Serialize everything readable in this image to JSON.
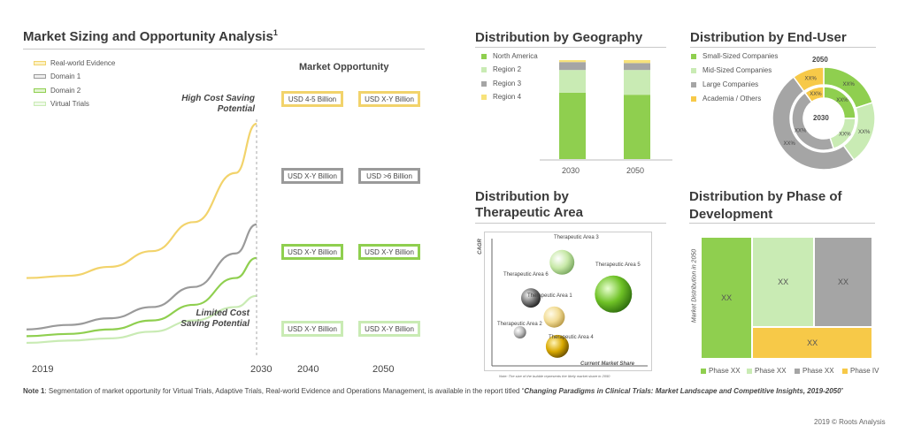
{
  "colors": {
    "yellow": "#f2d36b",
    "light_yellow": "#f5e9b0",
    "grey": "#9a9a9a",
    "green": "#8fcf4f",
    "light_green": "#c9ebb4",
    "dark_grey": "#a5a5a5",
    "gold": "#f7c948"
  },
  "market": {
    "title": "Market Sizing and Opportunity Analysis",
    "title_sup": "1",
    "legend": [
      "Real-world Evidence",
      "Domain  1",
      "Domain  2",
      "Virtual Trials"
    ],
    "opportunity_heading": "Market Opportunity",
    "high_label_1": "High Cost Saving",
    "high_label_2": "Potential",
    "low_label_1": "Limited Cost",
    "low_label_2": "Saving Potential",
    "years": [
      "2019",
      "2030",
      "2040",
      "2050"
    ],
    "boxes": [
      {
        "b2040": "USD 4-5 Billion",
        "b2050": "USD X-Y Billion"
      },
      {
        "b2040": "USD X-Y Billion",
        "b2050": "USD >6 Billion"
      },
      {
        "b2040": "USD X-Y Billion",
        "b2050": "USD X-Y Billion"
      },
      {
        "b2040": "USD X-Y Billion",
        "b2050": "USD X-Y Billion"
      }
    ]
  },
  "geo": {
    "title": "Distribution  by Geography",
    "legend": [
      "North America",
      "Region 2",
      "Region 3",
      "Region 4"
    ]
  },
  "enduser": {
    "title": "Distribution  by End-User",
    "legend": [
      "Small-Sized  Companies",
      "Mid-Sized Companies",
      "Large Companies",
      "Academia / Others"
    ],
    "outer_year": "2050",
    "inner_year": "2030",
    "slice_label": "XX%"
  },
  "therapeutic": {
    "title_1": "Distribution  by",
    "title_2": "Therapeutic Area",
    "y_axis": "CAGR",
    "x_axis": "Current  Market Share",
    "note": "Note: The size of the bubble represents the likely market share in 2050"
  },
  "phase": {
    "title_1": "Distribution  by Phase of",
    "title_2": "Development",
    "y_axis": "Market Distribution in 2050",
    "cell_label": "XX",
    "legend": [
      "Phase XX",
      "Phase XX",
      "Phase XX",
      "Phase IV"
    ]
  },
  "footnote": {
    "bold": "Note 1",
    "text": ": Segmentation  of market opportunity for Virtual Trials, Adaptive Trials, Real-world Evidence and Operations Management,  is available in the report titled “",
    "report": "Changing Paradigms in Clinical Trials: Market Landscape and Competitive Insights, 2019-2050",
    "close": "”"
  },
  "copyright": "2019 © Roots Analysis",
  "chart_data": [
    {
      "type": "line",
      "title": "Market Sizing and Opportunity Analysis",
      "x": [
        2019,
        2021,
        2023,
        2025,
        2027,
        2029,
        2030
      ],
      "series": [
        {
          "name": "Real-world Evidence",
          "values": [
            31,
            32,
            36,
            43,
            56,
            78,
            100
          ]
        },
        {
          "name": "Domain  1",
          "values": [
            8,
            10,
            13,
            18,
            27,
            42,
            55
          ]
        },
        {
          "name": "Domain  2",
          "values": [
            5,
            6,
            8,
            12,
            19,
            31,
            40
          ]
        },
        {
          "name": "Virtual Trials",
          "values": [
            2,
            3,
            4,
            7,
            12,
            18,
            23
          ]
        }
      ],
      "xlim": [
        2019,
        2030
      ],
      "ylim": [
        0,
        100
      ]
    },
    {
      "type": "bar",
      "title": "Distribution  by Geography",
      "categories": [
        "2030",
        "2050"
      ],
      "stacked": true,
      "series": [
        {
          "name": "North America",
          "values": [
            67,
            65
          ]
        },
        {
          "name": "Region 2",
          "values": [
            23,
            25
          ]
        },
        {
          "name": "Region 3",
          "values": [
            8,
            7
          ]
        },
        {
          "name": "Region 4",
          "values": [
            2,
            3
          ]
        }
      ],
      "ylim": [
        0,
        100
      ]
    },
    {
      "type": "pie",
      "title": "Distribution  by End-User",
      "rings": [
        {
          "name": "2050",
          "values": [
            20,
            20,
            50,
            10
          ]
        },
        {
          "name": "2030",
          "values": [
            25,
            20,
            45,
            10
          ]
        }
      ],
      "labels": [
        "Small-Sized  Companies",
        "Mid-Sized Companies",
        "Large Companies",
        "Academia / Others"
      ]
    },
    {
      "type": "scatter",
      "title": "Distribution  by Therapeutic Area",
      "xlabel": "Current  Market Share",
      "ylabel": "CAGR",
      "points": [
        {
          "label": "Therapeutic  Area 3",
          "x": 45,
          "y": 80,
          "size": 14
        },
        {
          "label": "Therapeutic Area 5",
          "x": 78,
          "y": 55,
          "size": 21
        },
        {
          "label": "Therapeutic  Area 6",
          "x": 25,
          "y": 52,
          "size": 11
        },
        {
          "label": "Therapeutic  Area 1",
          "x": 40,
          "y": 37,
          "size": 12
        },
        {
          "label": "Therapeutic  Area 2",
          "x": 18,
          "y": 25,
          "size": 7
        },
        {
          "label": "Therapeutic  Area 4",
          "x": 42,
          "y": 14,
          "size": 13
        }
      ]
    },
    {
      "type": "heatmap",
      "title": "Distribution  by Phase of Development",
      "ylabel": "Market Distribution in 2050",
      "cells": [
        {
          "label": "XX",
          "series": "Phase XX",
          "x": 0,
          "w": 30,
          "y": 0,
          "h": 100
        },
        {
          "label": "XX",
          "series": "Phase XX",
          "x": 30,
          "w": 36,
          "y": 0,
          "h": 74
        },
        {
          "label": "XX",
          "series": "Phase XX",
          "x": 66,
          "w": 34,
          "y": 0,
          "h": 74
        },
        {
          "label": "XX",
          "series": "Phase IV",
          "x": 30,
          "w": 70,
          "y": 74,
          "h": 26
        }
      ]
    }
  ]
}
